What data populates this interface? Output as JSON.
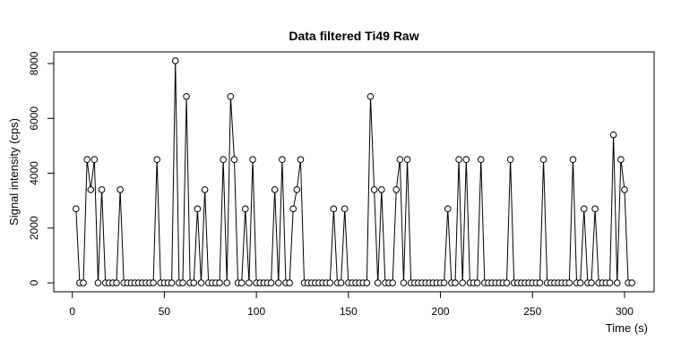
{
  "chart_data": {
    "type": "line",
    "title": "Data filtered Ti49 Raw",
    "x_label": "Time (s)",
    "y_label": "Signal intensity (cps)",
    "color": "#000000",
    "x": [
      2,
      4,
      6,
      8,
      10,
      12,
      14,
      16,
      18,
      20,
      22,
      24,
      26,
      28,
      30,
      32,
      34,
      36,
      38,
      40,
      42,
      44,
      46,
      48,
      50,
      52,
      54,
      56,
      58,
      60,
      62,
      64,
      66,
      68,
      70,
      72,
      74,
      76,
      78,
      80,
      82,
      84,
      86,
      88,
      90,
      92,
      94,
      96,
      98,
      100,
      102,
      104,
      106,
      108,
      110,
      112,
      114,
      116,
      118,
      120,
      122,
      124,
      126,
      128,
      130,
      132,
      134,
      136,
      138,
      140,
      142,
      144,
      146,
      148,
      150,
      152,
      154,
      156,
      158,
      160,
      162,
      164,
      166,
      168,
      170,
      172,
      174,
      176,
      178,
      180,
      182,
      184,
      186,
      188,
      190,
      192,
      194,
      196,
      198,
      200,
      202,
      204,
      206,
      208,
      210,
      212,
      214,
      216,
      218,
      220,
      222,
      224,
      226,
      228,
      230,
      232,
      234,
      236,
      238,
      240,
      242,
      244,
      246,
      248,
      250,
      252,
      254,
      256,
      258,
      260,
      262,
      264,
      266,
      268,
      270,
      272,
      274,
      276,
      278,
      280,
      282,
      284,
      286,
      288,
      290,
      292,
      294,
      296,
      298,
      300,
      302,
      304
    ],
    "values": [
      2700,
      0,
      0,
      4500,
      3400,
      4500,
      0,
      3400,
      0,
      0,
      0,
      0,
      3400,
      0,
      0,
      0,
      0,
      0,
      0,
      0,
      0,
      0,
      4500,
      0,
      0,
      0,
      0,
      8100,
      0,
      0,
      6800,
      0,
      0,
      2700,
      0,
      3400,
      0,
      0,
      0,
      0,
      4500,
      0,
      6800,
      4500,
      0,
      0,
      2700,
      0,
      4500,
      0,
      0,
      0,
      0,
      0,
      3400,
      0,
      4500,
      0,
      0,
      2700,
      3400,
      4500,
      0,
      0,
      0,
      0,
      0,
      0,
      0,
      0,
      2700,
      0,
      0,
      2700,
      0,
      0,
      0,
      0,
      0,
      0,
      6800,
      3400,
      0,
      3400,
      0,
      0,
      0,
      3400,
      4500,
      0,
      4500,
      0,
      0,
      0,
      0,
      0,
      0,
      0,
      0,
      0,
      0,
      2700,
      0,
      0,
      4500,
      0,
      4500,
      0,
      0,
      0,
      4500,
      0,
      0,
      0,
      0,
      0,
      0,
      0,
      4500,
      0,
      0,
      0,
      0,
      0,
      0,
      0,
      0,
      4500,
      0,
      0,
      0,
      0,
      0,
      0,
      0,
      4500,
      0,
      0,
      2700,
      0,
      0,
      2700,
      0,
      0,
      0,
      0,
      5400,
      0,
      4500,
      3400,
      0,
      0
    ],
    "xlim": [
      -10.08,
      316.08
    ],
    "ylim": [
      -324,
      8424
    ],
    "xticks": [
      0,
      50,
      100,
      150,
      200,
      250,
      300
    ],
    "yticks": [
      0,
      2000,
      4000,
      6000,
      8000
    ]
  }
}
